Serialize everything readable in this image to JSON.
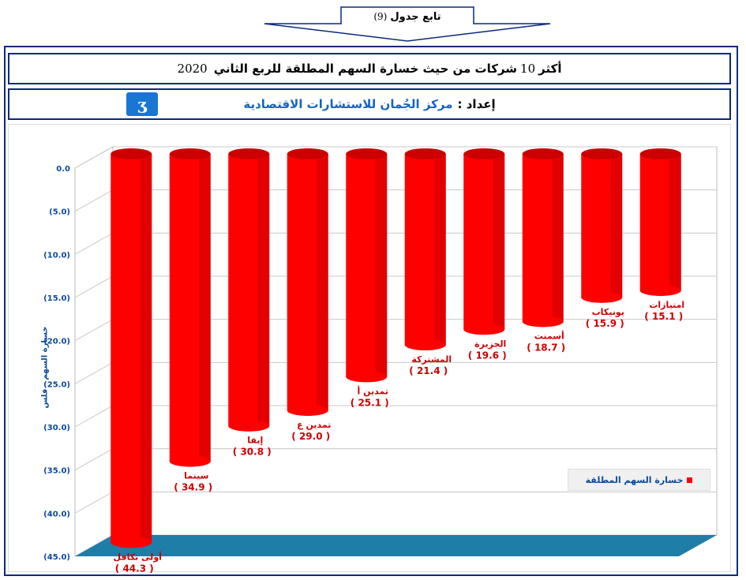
{
  "header": {
    "badge_label": "تابع جدول",
    "badge_num": "(9)"
  },
  "title": {
    "prefix": "أكثر",
    "num": "10",
    "main": "شركات من حيث خسارة السهم المطلقة للربع الثاني",
    "year": "2020"
  },
  "credit": {
    "prefix": "إعداد :",
    "org": "مركز الجُمان للاستشارات الاقتصادية"
  },
  "colors": {
    "bar": "#ff0000",
    "bar_dark": "#b00000",
    "floor": "#1f7ea8",
    "label": "#cc0000",
    "navy": "#0a2a7a",
    "axis_text": "#0b4a9e"
  },
  "chart_data": {
    "type": "bar",
    "categories": [
      "أولى تكافل",
      "سينما",
      "إيفا",
      "تمدين ع",
      "تمدين أ",
      "المشتركة",
      "الجزيرة",
      "أسمنت",
      "يونيكاب",
      "امتيازات"
    ],
    "series": [
      {
        "name": "خسارة السهم المطلقة",
        "values": [
          44.3,
          34.9,
          30.8,
          29.0,
          25.1,
          21.4,
          19.6,
          18.7,
          15.9,
          15.1
        ]
      }
    ],
    "value_labels": [
      "( 44.3 )",
      "( 34.9 )",
      "( 30.8 )",
      "( 29.0 )",
      "( 25.1 )",
      "( 21.4 )",
      "( 19.6 )",
      "( 18.7 )",
      "( 15.9 )",
      "( 15.1 )"
    ],
    "ytick_labels": [
      "0.0",
      "(5.0)",
      "(10.0)",
      "(15.0)",
      "(20.0)",
      "(25.0)",
      "(30.0)",
      "(35.0)",
      "(40.0)",
      "(45.0)"
    ],
    "ylim": [
      0,
      45
    ],
    "ylabel": "خسارة السهم - فلس",
    "legend_position": "right",
    "grid": true
  }
}
